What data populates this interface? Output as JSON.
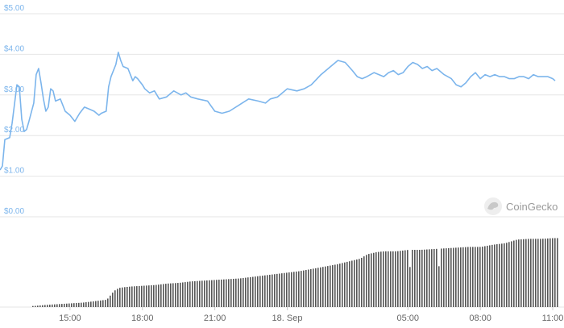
{
  "brand": {
    "name": "CoinGecko",
    "icon": "gecko-logo-icon"
  },
  "chart_data": {
    "type": "line",
    "title": "",
    "xlabel": "",
    "ylabel": "",
    "ylim": [
      0,
      5
    ],
    "y_ticks": [
      "$0.00",
      "$1.00",
      "$2.00",
      "$3.00",
      "$4.00",
      "$5.00"
    ],
    "y_tick_values": [
      0,
      1,
      2,
      3,
      4,
      5
    ],
    "x_ticks": [
      "15:00",
      "18:00",
      "21:00",
      "18. Sep",
      "05:00",
      "08:00",
      "11:00"
    ],
    "x_tick_hours": [
      15,
      18,
      21,
      24,
      29,
      32,
      35
    ],
    "xlim_hours": [
      12.1,
      35.2
    ],
    "grid": true,
    "colors": {
      "price": "#7cb5ec",
      "volume": "#555555",
      "grid": "#e6e6e6"
    },
    "series": [
      {
        "type": "line",
        "x_hours": [
          12.1,
          12.2,
          12.3,
          12.5,
          12.6,
          12.8,
          12.9,
          13.0,
          13.1,
          13.2,
          13.3,
          13.5,
          13.6,
          13.7,
          13.8,
          13.9,
          14.0,
          14.1,
          14.2,
          14.3,
          14.4,
          14.6,
          14.8,
          15.0,
          15.2,
          15.3,
          15.4,
          15.6,
          15.8,
          16.0,
          16.2,
          16.3,
          16.5,
          16.6,
          16.7,
          16.8,
          16.9,
          17.0,
          17.1,
          17.2,
          17.4,
          17.5,
          17.6,
          17.7,
          17.8,
          18.0,
          18.1,
          18.3,
          18.5,
          18.7,
          19.0,
          19.3,
          19.6,
          19.8,
          20.0,
          20.3,
          20.7,
          21.0,
          21.3,
          21.6,
          22.0,
          22.4,
          22.8,
          23.1,
          23.3,
          23.6,
          23.8,
          24.0,
          24.4,
          24.7,
          25.0,
          25.4,
          25.8,
          26.1,
          26.4,
          26.7,
          26.9,
          27.1,
          27.3,
          27.6,
          27.8,
          28.0,
          28.2,
          28.4,
          28.6,
          28.8,
          29.0,
          29.2,
          29.4,
          29.6,
          29.8,
          30.0,
          30.2,
          30.5,
          30.8,
          31.0,
          31.2,
          31.4,
          31.6,
          31.8,
          32.0,
          32.2,
          32.4,
          32.6,
          32.8,
          33.0,
          33.2,
          33.4,
          33.6,
          33.8,
          34.0,
          34.2,
          34.4,
          34.6,
          34.8,
          35.0,
          35.1
        ],
        "values": [
          1.15,
          1.25,
          1.9,
          1.95,
          2.3,
          3.25,
          3.2,
          2.4,
          2.1,
          2.15,
          2.35,
          2.8,
          3.5,
          3.65,
          3.3,
          2.9,
          2.6,
          2.7,
          3.15,
          3.1,
          2.85,
          2.9,
          2.6,
          2.5,
          2.35,
          2.45,
          2.55,
          2.7,
          2.65,
          2.6,
          2.5,
          2.55,
          2.6,
          3.2,
          3.45,
          3.6,
          3.75,
          4.05,
          3.85,
          3.7,
          3.65,
          3.5,
          3.35,
          3.45,
          3.4,
          3.25,
          3.15,
          3.05,
          3.1,
          2.9,
          2.95,
          3.1,
          3.0,
          3.05,
          2.95,
          2.9,
          2.85,
          2.6,
          2.55,
          2.6,
          2.75,
          2.9,
          2.85,
          2.8,
          2.9,
          2.95,
          3.05,
          3.15,
          3.1,
          3.15,
          3.25,
          3.5,
          3.7,
          3.85,
          3.8,
          3.6,
          3.45,
          3.4,
          3.45,
          3.55,
          3.5,
          3.45,
          3.55,
          3.6,
          3.5,
          3.55,
          3.7,
          3.8,
          3.75,
          3.65,
          3.7,
          3.6,
          3.65,
          3.5,
          3.4,
          3.25,
          3.2,
          3.3,
          3.45,
          3.55,
          3.4,
          3.5,
          3.45,
          3.5,
          3.45,
          3.45,
          3.4,
          3.4,
          3.45,
          3.45,
          3.4,
          3.5,
          3.45,
          3.45,
          3.45,
          3.4,
          3.35
        ]
      },
      {
        "type": "bar",
        "name": "",
        "note_units": "relative volume (0-1)",
        "x_hours": [
          12.3,
          13.0,
          13.5,
          14.0,
          14.5,
          15.0,
          15.5,
          16.0,
          16.5,
          16.8,
          17.0,
          17.2,
          17.5,
          18.0,
          18.5,
          19.0,
          19.5,
          20.0,
          20.5,
          21.0,
          21.5,
          22.0,
          22.5,
          23.0,
          23.5,
          24.0,
          24.5,
          25.0,
          25.5,
          26.0,
          26.5,
          27.0,
          27.3,
          27.7,
          28.0,
          28.5,
          29.0,
          29.5,
          30.0,
          30.5,
          31.0,
          31.5,
          32.0,
          32.5,
          33.0,
          33.5,
          34.0,
          34.5,
          35.0,
          35.2
        ],
        "values": [
          0.0,
          0.01,
          0.015,
          0.03,
          0.04,
          0.05,
          0.06,
          0.08,
          0.1,
          0.22,
          0.26,
          0.27,
          0.28,
          0.29,
          0.3,
          0.32,
          0.33,
          0.35,
          0.36,
          0.37,
          0.38,
          0.39,
          0.41,
          0.43,
          0.45,
          0.47,
          0.49,
          0.52,
          0.55,
          0.58,
          0.62,
          0.66,
          0.72,
          0.75,
          0.76,
          0.76,
          0.78,
          0.78,
          0.79,
          0.8,
          0.81,
          0.82,
          0.82,
          0.85,
          0.87,
          0.92,
          0.93,
          0.93,
          0.94,
          0.94
        ]
      }
    ]
  }
}
